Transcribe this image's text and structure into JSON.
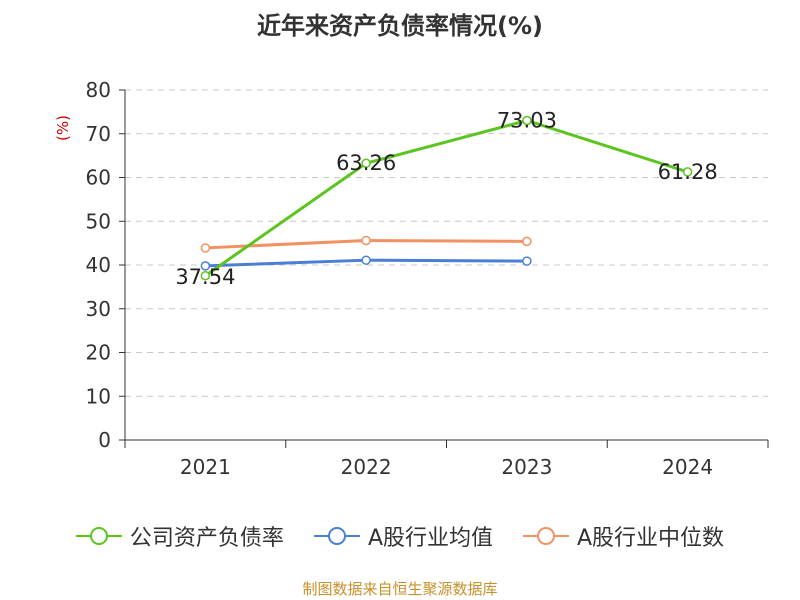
{
  "chart_data": {
    "type": "line",
    "title": "近年来资产负债率情况(%)",
    "ylabel": "(%)",
    "categories": [
      "2021",
      "2022",
      "2023",
      "2024"
    ],
    "ylim": [
      0,
      80
    ],
    "yticks": [
      0,
      10,
      20,
      30,
      40,
      50,
      60,
      70,
      80
    ],
    "grid": true,
    "legend_position": "bottom",
    "series": [
      {
        "name": "公司资产负债率",
        "color": "#5cc41f",
        "values": [
          37.54,
          63.26,
          73.03,
          61.28
        ],
        "labels": [
          "37.54",
          "63.26",
          "73.03",
          "61.28"
        ]
      },
      {
        "name": "A股行业均值",
        "color": "#4a7fd6",
        "values": [
          39.8,
          41.1,
          40.9,
          null
        ]
      },
      {
        "name": "A股行业中位数",
        "color": "#f39160",
        "values": [
          43.9,
          45.6,
          45.4,
          null
        ]
      }
    ],
    "source_note": "制图数据来自恒生聚源数据库"
  }
}
